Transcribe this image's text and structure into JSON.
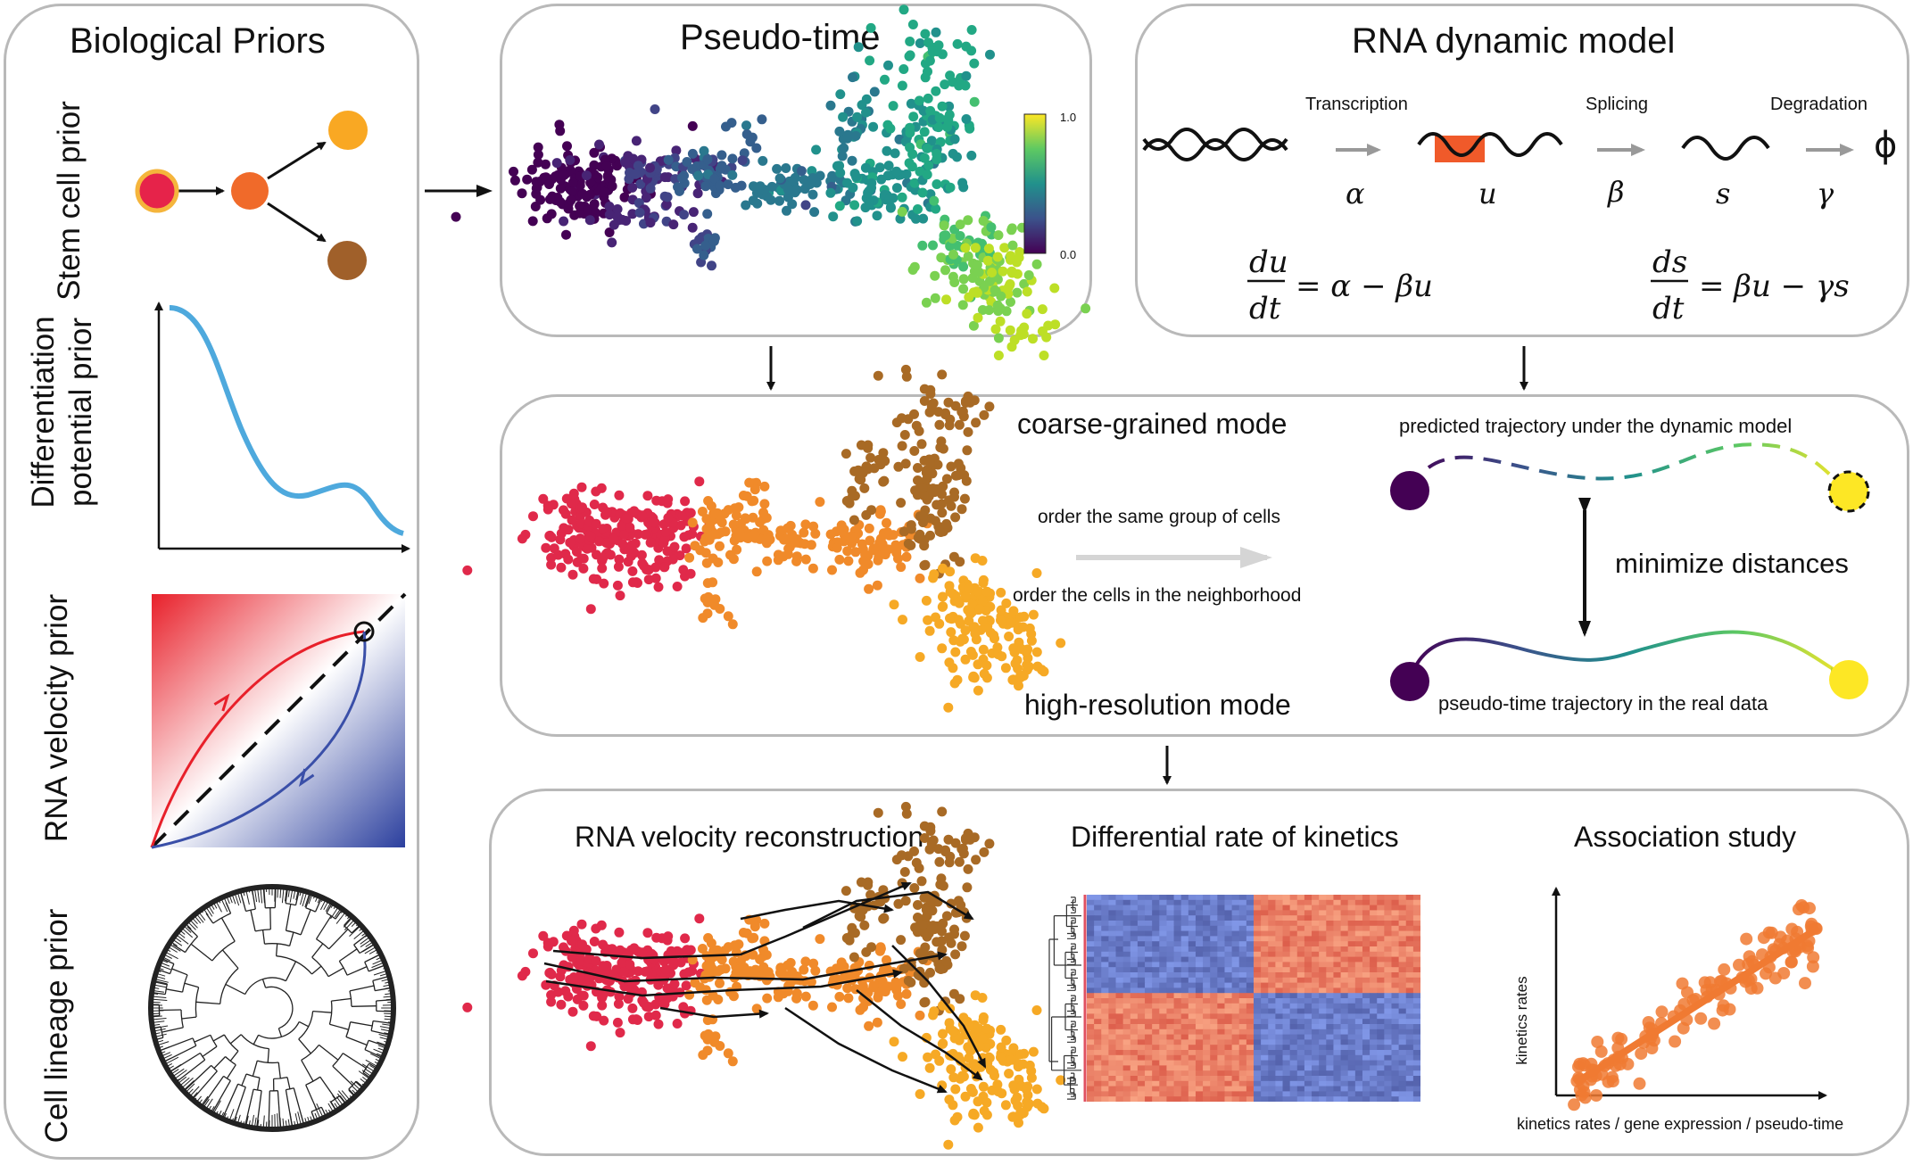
{
  "priors": {
    "title": "Biological Priors",
    "stem_cell": "Stem cell prior",
    "diff_potential_1": "Differentiation",
    "diff_potential_2": "potential prior",
    "rna_velocity": "RNA velocity prior",
    "cell_lineage": "Cell lineage prior"
  },
  "pseudotime": {
    "title": "Pseudo-time",
    "colorbar_max": "1.0",
    "colorbar_min": "0.0"
  },
  "rna_model": {
    "title": "RNA dynamic model",
    "transcription": "Transcription",
    "splicing": "Splicing",
    "degradation": "Degradation",
    "alpha": "α",
    "u": "u",
    "beta": "β",
    "s": "s",
    "gamma": "γ",
    "phi": "ϕ",
    "eq1_num": "du",
    "eq1_den": "dt",
    "eq1_rhs": "= α − βu",
    "eq2_num": "ds",
    "eq2_den": "dt",
    "eq2_rhs": "= βu − γs"
  },
  "middle": {
    "coarse_mode": "coarse-grained mode",
    "high_res_mode": "high-resolution mode",
    "order_same": "order the same group of cells",
    "order_neighborhood": "order the cells in the neighborhood",
    "predicted": "predicted trajectory under the dynamic model",
    "minimize": "minimize distances",
    "real_traj": "pseudo-time trajectory in the real data"
  },
  "bottom": {
    "velocity_title": "RNA velocity reconstruction",
    "diff_title": "Differential rate of kinetics",
    "assoc_title": "Association study",
    "assoc_ylabel": "kinetics rates",
    "assoc_xlabel": "kinetics rates / gene expression / pseudo-time"
  },
  "colors": {
    "panel_border": "#b9b9b9",
    "viridis_start": "#440154",
    "viridis_end": "#fde725",
    "cluster_red": "#e0294a",
    "cluster_orange": "#f08a2a",
    "cluster_brown": "#a86a25",
    "cluster_yellow": "#f6a925",
    "velocity_blue": "#3a4fa8",
    "splice_red": "#f05a2a",
    "assoc_orange": "#f07a32"
  }
}
